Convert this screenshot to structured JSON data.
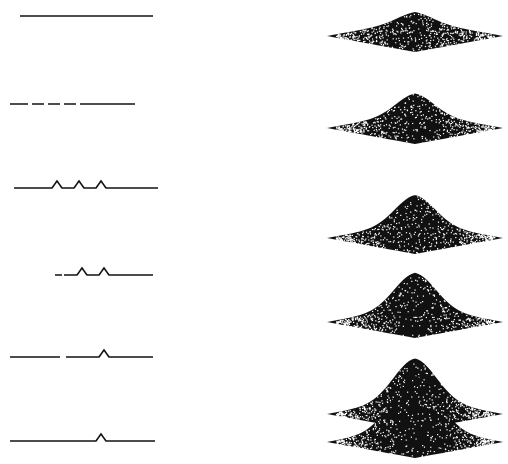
{
  "figure": {
    "description_text": "",
    "rows": [
      {
        "profile_bumps": 0,
        "surface_height": 0.0
      },
      {
        "profile_bumps": 0,
        "surface_height": 0.25
      },
      {
        "profile_bumps": 3,
        "surface_height": 0.45
      },
      {
        "profile_bumps": 2,
        "surface_height": 0.6
      },
      {
        "profile_bumps": 1,
        "surface_height": 0.75
      },
      {
        "profile_bumps": 1,
        "surface_height": 1.0
      }
    ],
    "colors": {
      "ink": "#111111",
      "paper": "#ffffff",
      "speckle": "#ffffff"
    }
  }
}
